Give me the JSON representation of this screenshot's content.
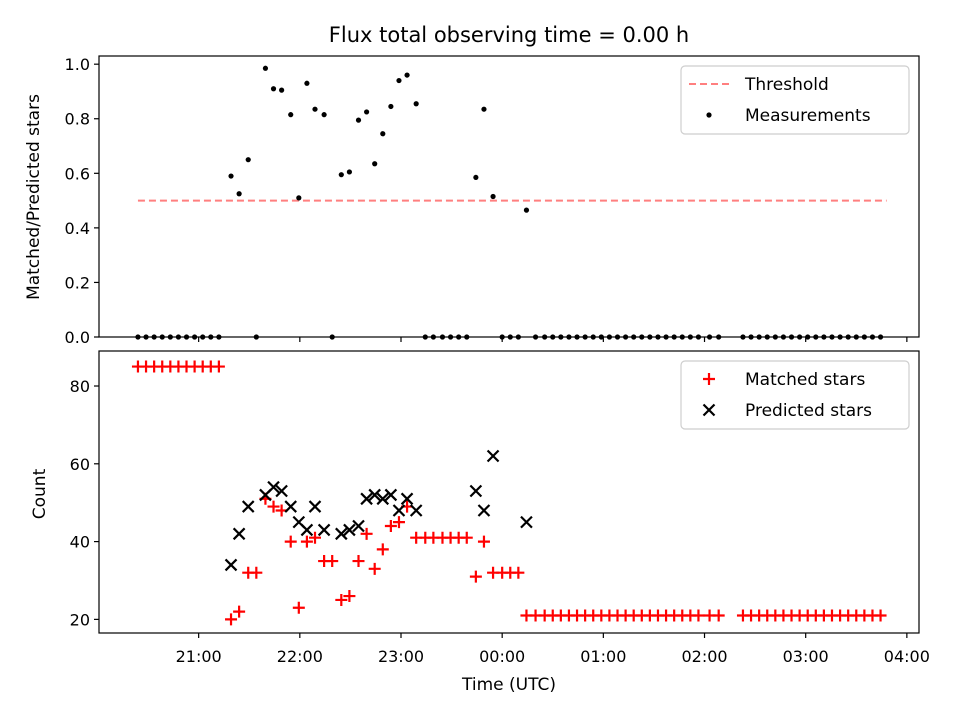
{
  "chart_data": [
    {
      "type": "scatter",
      "title": "Flux total observing time = 0.00 h",
      "xlabel": "",
      "ylabel": "Matched/Predicted stars",
      "ylim": [
        0,
        1.03
      ],
      "x_unit": "time of day (UTC), hours after 21:00",
      "xlim": [
        -0.985,
        7.12
      ],
      "grid": false,
      "legend_position": "top-right",
      "yticks": [
        "0.0",
        "0.2",
        "0.4",
        "0.6",
        "0.8",
        "1.0"
      ],
      "legend": [
        "Threshold",
        "Measurements"
      ],
      "threshold": {
        "name": "Threshold",
        "value": 0.5,
        "x_range": [
          -0.6,
          6.8
        ],
        "color": "#ff7f7f",
        "style": "dashed"
      },
      "series": [
        {
          "name": "Measurements",
          "marker": "dot",
          "color": "#000000",
          "points": [
            [
              -0.6,
              0
            ],
            [
              -0.52,
              0
            ],
            [
              -0.44,
              0
            ],
            [
              -0.36,
              0
            ],
            [
              -0.28,
              0
            ],
            [
              -0.2,
              0
            ],
            [
              -0.12,
              0
            ],
            [
              -0.04,
              0
            ],
            [
              0.04,
              0
            ],
            [
              0.12,
              0
            ],
            [
              0.2,
              0
            ],
            [
              0.32,
              0.59
            ],
            [
              0.4,
              0.525
            ],
            [
              0.49,
              0.65
            ],
            [
              0.57,
              0
            ],
            [
              0.66,
              0.985
            ],
            [
              0.74,
              0.91
            ],
            [
              0.82,
              0.905
            ],
            [
              0.91,
              0.815
            ],
            [
              0.99,
              0.51
            ],
            [
              1.07,
              0.93
            ],
            [
              1.15,
              0.835
            ],
            [
              1.24,
              0.815
            ],
            [
              1.32,
              0
            ],
            [
              1.41,
              0.595
            ],
            [
              1.49,
              0.605
            ],
            [
              1.58,
              0.795
            ],
            [
              1.66,
              0.825
            ],
            [
              1.74,
              0.635
            ],
            [
              1.82,
              0.745
            ],
            [
              1.9,
              0.845
            ],
            [
              1.98,
              0.94
            ],
            [
              2.06,
              0.96
            ],
            [
              2.15,
              0.855
            ],
            [
              2.24,
              0
            ],
            [
              2.32,
              0
            ],
            [
              2.41,
              0
            ],
            [
              2.49,
              0
            ],
            [
              2.57,
              0
            ],
            [
              2.65,
              0
            ],
            [
              2.74,
              0.585
            ],
            [
              2.82,
              0.835
            ],
            [
              2.91,
              0.515
            ],
            [
              3.0,
              0
            ],
            [
              3.08,
              0
            ],
            [
              3.16,
              0
            ],
            [
              3.24,
              0.465
            ],
            [
              3.33,
              0
            ],
            [
              3.42,
              0
            ],
            [
              3.5,
              0
            ],
            [
              3.58,
              0
            ],
            [
              3.66,
              0
            ],
            [
              3.74,
              0
            ],
            [
              3.82,
              0
            ],
            [
              3.9,
              0
            ],
            [
              3.98,
              0
            ],
            [
              4.06,
              0
            ],
            [
              4.14,
              0
            ],
            [
              4.22,
              0
            ],
            [
              4.3,
              0
            ],
            [
              4.38,
              0
            ],
            [
              4.46,
              0
            ],
            [
              4.54,
              0
            ],
            [
              4.62,
              0
            ],
            [
              4.7,
              0
            ],
            [
              4.78,
              0
            ],
            [
              4.86,
              0
            ],
            [
              4.94,
              0
            ],
            [
              5.05,
              0
            ],
            [
              5.14,
              0
            ],
            [
              5.38,
              0
            ],
            [
              5.46,
              0
            ],
            [
              5.54,
              0
            ],
            [
              5.62,
              0
            ],
            [
              5.7,
              0
            ],
            [
              5.78,
              0
            ],
            [
              5.86,
              0
            ],
            [
              5.94,
              0
            ],
            [
              6.02,
              0
            ],
            [
              6.1,
              0
            ],
            [
              6.18,
              0
            ],
            [
              6.26,
              0
            ],
            [
              6.34,
              0
            ],
            [
              6.42,
              0
            ],
            [
              6.5,
              0
            ],
            [
              6.58,
              0
            ],
            [
              6.66,
              0
            ],
            [
              6.74,
              0
            ]
          ]
        }
      ]
    },
    {
      "type": "scatter",
      "title": "",
      "xlabel": "Time (UTC)",
      "ylabel": "Count",
      "ylim": [
        16.5,
        89
      ],
      "x_unit": "time of day (UTC), hours after 21:00",
      "xlim": [
        -0.985,
        7.12
      ],
      "grid": false,
      "legend_position": "top-right",
      "yticks": [
        "20",
        "40",
        "60",
        "80"
      ],
      "xticks": [
        "21:00",
        "22:00",
        "23:00",
        "00:00",
        "01:00",
        "02:00",
        "03:00",
        "04:00"
      ],
      "legend": [
        "Matched stars",
        "Predicted stars"
      ],
      "series": [
        {
          "name": "Matched stars",
          "marker": "plus",
          "color": "#ff0000",
          "points": [
            [
              -0.6,
              85
            ],
            [
              -0.52,
              85
            ],
            [
              -0.44,
              85
            ],
            [
              -0.36,
              85
            ],
            [
              -0.28,
              85
            ],
            [
              -0.2,
              85
            ],
            [
              -0.12,
              85
            ],
            [
              -0.04,
              85
            ],
            [
              0.04,
              85
            ],
            [
              0.12,
              85
            ],
            [
              0.2,
              85
            ],
            [
              0.32,
              20
            ],
            [
              0.4,
              22
            ],
            [
              0.49,
              32
            ],
            [
              0.57,
              32
            ],
            [
              0.66,
              51
            ],
            [
              0.74,
              49
            ],
            [
              0.82,
              48
            ],
            [
              0.91,
              40
            ],
            [
              0.99,
              23
            ],
            [
              1.07,
              40
            ],
            [
              1.15,
              41
            ],
            [
              1.24,
              35
            ],
            [
              1.32,
              35
            ],
            [
              1.41,
              25
            ],
            [
              1.49,
              26
            ],
            [
              1.58,
              35
            ],
            [
              1.66,
              42
            ],
            [
              1.74,
              33
            ],
            [
              1.82,
              38
            ],
            [
              1.9,
              44
            ],
            [
              1.98,
              45
            ],
            [
              2.06,
              49
            ],
            [
              2.15,
              41
            ],
            [
              2.24,
              41
            ],
            [
              2.32,
              41
            ],
            [
              2.41,
              41
            ],
            [
              2.49,
              41
            ],
            [
              2.57,
              41
            ],
            [
              2.65,
              41
            ],
            [
              2.74,
              31
            ],
            [
              2.82,
              40
            ],
            [
              2.91,
              32
            ],
            [
              3.0,
              32
            ],
            [
              3.08,
              32
            ],
            [
              3.16,
              32
            ],
            [
              3.24,
              21
            ],
            [
              3.33,
              21
            ],
            [
              3.42,
              21
            ],
            [
              3.5,
              21
            ],
            [
              3.58,
              21
            ],
            [
              3.66,
              21
            ],
            [
              3.74,
              21
            ],
            [
              3.82,
              21
            ],
            [
              3.9,
              21
            ],
            [
              3.98,
              21
            ],
            [
              4.06,
              21
            ],
            [
              4.14,
              21
            ],
            [
              4.22,
              21
            ],
            [
              4.3,
              21
            ],
            [
              4.38,
              21
            ],
            [
              4.46,
              21
            ],
            [
              4.54,
              21
            ],
            [
              4.62,
              21
            ],
            [
              4.7,
              21
            ],
            [
              4.78,
              21
            ],
            [
              4.86,
              21
            ],
            [
              4.94,
              21
            ],
            [
              5.05,
              21
            ],
            [
              5.14,
              21
            ],
            [
              5.38,
              21
            ],
            [
              5.46,
              21
            ],
            [
              5.54,
              21
            ],
            [
              5.62,
              21
            ],
            [
              5.7,
              21
            ],
            [
              5.78,
              21
            ],
            [
              5.86,
              21
            ],
            [
              5.94,
              21
            ],
            [
              6.02,
              21
            ],
            [
              6.1,
              21
            ],
            [
              6.18,
              21
            ],
            [
              6.26,
              21
            ],
            [
              6.34,
              21
            ],
            [
              6.42,
              21
            ],
            [
              6.5,
              21
            ],
            [
              6.58,
              21
            ],
            [
              6.66,
              21
            ],
            [
              6.74,
              21
            ]
          ]
        },
        {
          "name": "Predicted stars",
          "marker": "x",
          "color": "#000000",
          "points": [
            [
              0.32,
              34
            ],
            [
              0.4,
              42
            ],
            [
              0.49,
              49
            ],
            [
              0.66,
              52
            ],
            [
              0.74,
              54
            ],
            [
              0.82,
              53
            ],
            [
              0.91,
              49
            ],
            [
              0.99,
              45
            ],
            [
              1.07,
              43
            ],
            [
              1.15,
              49
            ],
            [
              1.24,
              43
            ],
            [
              1.41,
              42
            ],
            [
              1.49,
              43
            ],
            [
              1.58,
              44
            ],
            [
              1.66,
              51
            ],
            [
              1.74,
              52
            ],
            [
              1.82,
              51
            ],
            [
              1.9,
              52
            ],
            [
              1.98,
              48
            ],
            [
              2.06,
              51
            ],
            [
              2.15,
              48
            ],
            [
              2.74,
              53
            ],
            [
              2.82,
              48
            ],
            [
              2.91,
              62
            ],
            [
              3.24,
              45
            ]
          ]
        }
      ]
    }
  ]
}
